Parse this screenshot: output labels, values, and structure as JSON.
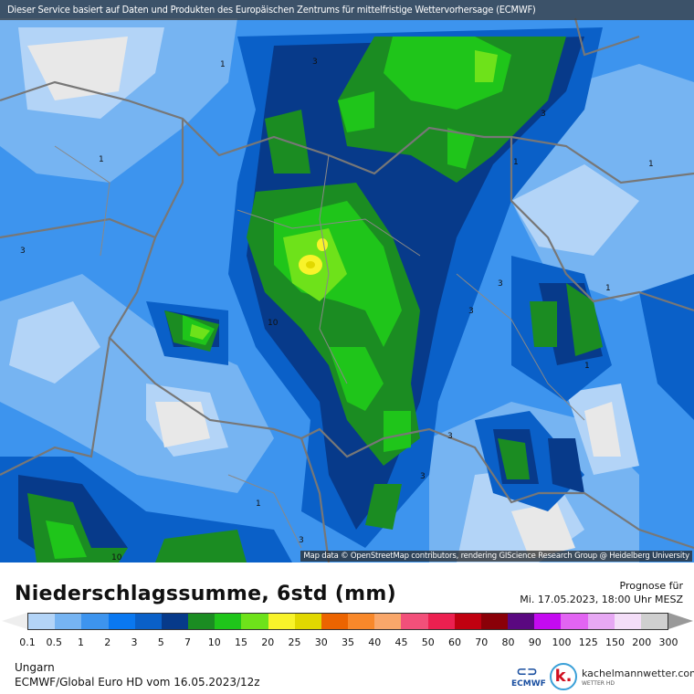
{
  "banner": "Dieser Service basiert auf Daten und Produkten des Europäischen Zentrums für mittelfristige Wettervorhersage  (ECMWF)",
  "attribution": "Map data © OpenStreetMap contributors, rendering GIScience Research Group @ Heidelberg University",
  "title": "Niederschlagssumme, 6std (mm)",
  "forecast": {
    "label": "Prognose für",
    "datetime": "Mi. 17.05.2023, 18:00 Uhr MESZ"
  },
  "legend": {
    "ticks": [
      "0.1",
      "0.5",
      "1",
      "2",
      "3",
      "5",
      "7",
      "10",
      "15",
      "20",
      "25",
      "30",
      "35",
      "40",
      "45",
      "50",
      "60",
      "70",
      "80",
      "90",
      "100",
      "125",
      "150",
      "200",
      "300"
    ],
    "colors": [
      "#b3d4f7",
      "#76b4f2",
      "#3d94ee",
      "#0a78f0",
      "#0a60c8",
      "#073a8a",
      "#1b8c22",
      "#1fc51a",
      "#6ee21a",
      "#f8f32a",
      "#e1d800",
      "#ec6400",
      "#f8882a",
      "#f9a76a",
      "#f2507a",
      "#ec2050",
      "#c00010",
      "#8a0008",
      "#5a0880",
      "#c40af0",
      "#e264f2",
      "#e7a8f4",
      "#f4def8",
      "#cfcfcf"
    ],
    "under_color": "#eeeeee",
    "over_color": "#999999"
  },
  "region": "Ungarn",
  "model": "ECMWF/Global Euro HD vom  16.05.2023/12z",
  "logos": {
    "ecmwf": "ECMWF",
    "kachelmann": "kachelmannwetter.com",
    "kachelmann_sub": "WETTER HD",
    "k": "k."
  },
  "contour_labels": [
    "1",
    "3",
    "1",
    "1",
    "3",
    "3",
    "10",
    "3",
    "3",
    "1",
    "1",
    "3",
    "1",
    "1",
    "3",
    "3",
    "10"
  ]
}
